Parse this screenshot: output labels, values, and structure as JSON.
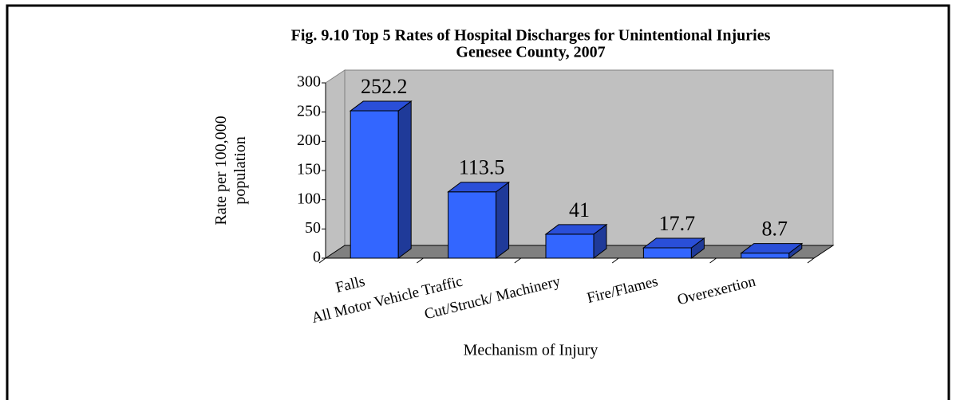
{
  "chart_data": {
    "type": "bar3d",
    "title": "Fig. 9.10 Top 5 Rates of Hospital Discharges for Unintentional Injuries",
    "subtitle": "Genesee County, 2007",
    "ylabel": [
      "Rate per 100,000",
      "population"
    ],
    "xlabel": "Mechanism of Injury",
    "categories": [
      "Falls",
      "All Motor Vehicle Traffic",
      "Cut/Struck/ Machinery",
      "Fire/Flames",
      "Overexertion"
    ],
    "values": [
      252.2,
      113.5,
      41,
      17.7,
      8.7
    ],
    "color": "#3366ff",
    "ylim": [
      0,
      300
    ],
    "yticks": [
      0,
      50,
      100,
      150,
      200,
      250,
      300
    ],
    "grid": false
  }
}
